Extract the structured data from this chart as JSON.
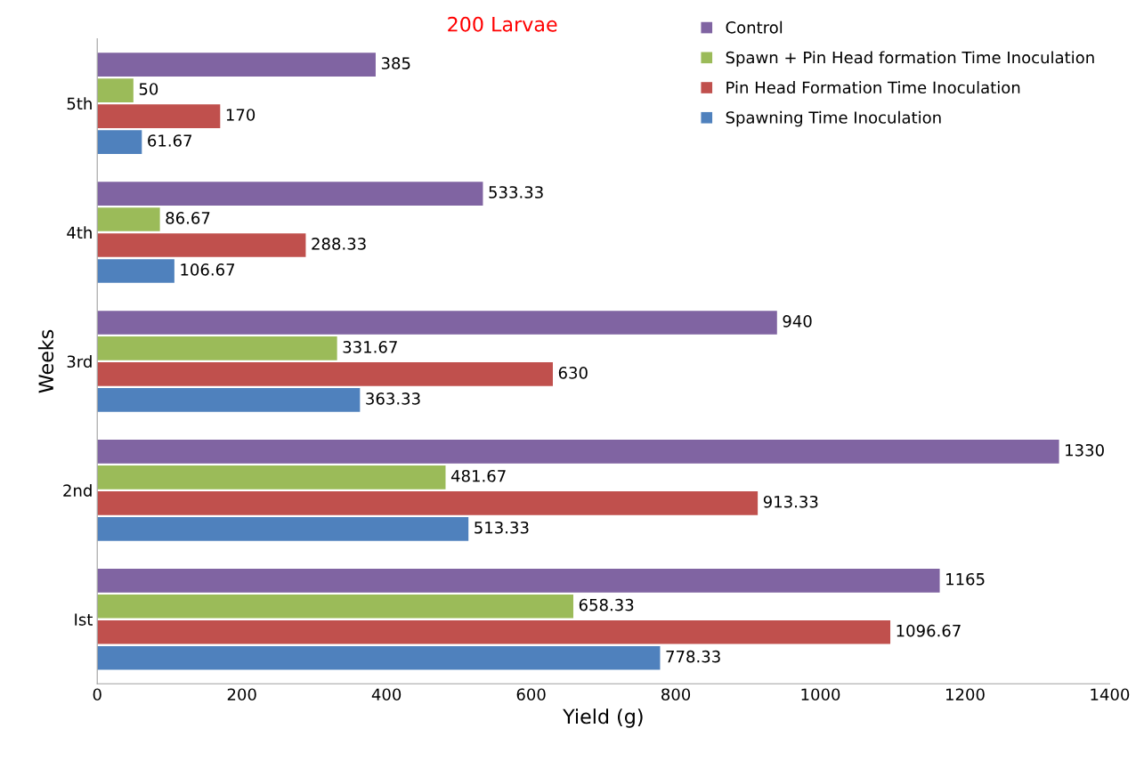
{
  "chart_data": {
    "type": "bar",
    "orientation": "horizontal",
    "title": "200 Larvae",
    "xlabel": "Yield (g)",
    "ylabel": "Weeks",
    "categories": [
      "5th",
      "4th",
      "3rd",
      "2nd",
      "Ist"
    ],
    "series": [
      {
        "name": "Control",
        "color": "#8064a2",
        "values": [
          385,
          533.33,
          940,
          1330,
          1165
        ]
      },
      {
        "name": "Spawn + Pin Head formation Time Inoculation",
        "color": "#9bbb59",
        "values": [
          50,
          86.67,
          331.67,
          481.67,
          658.33
        ]
      },
      {
        "name": "Pin Head Formation Time Inoculation",
        "color": "#c0504d",
        "values": [
          170,
          288.33,
          630,
          913.33,
          1096.67
        ]
      },
      {
        "name": "Spawning Time Inoculation",
        "color": "#4f81bd",
        "values": [
          61.67,
          106.67,
          363.33,
          513.33,
          778.33
        ]
      }
    ],
    "xlim": [
      0,
      1400
    ],
    "xticks": [
      0,
      200,
      400,
      600,
      800,
      1000,
      1200,
      1400
    ],
    "data_labels": true,
    "legend": "top right",
    "grid": false
  }
}
